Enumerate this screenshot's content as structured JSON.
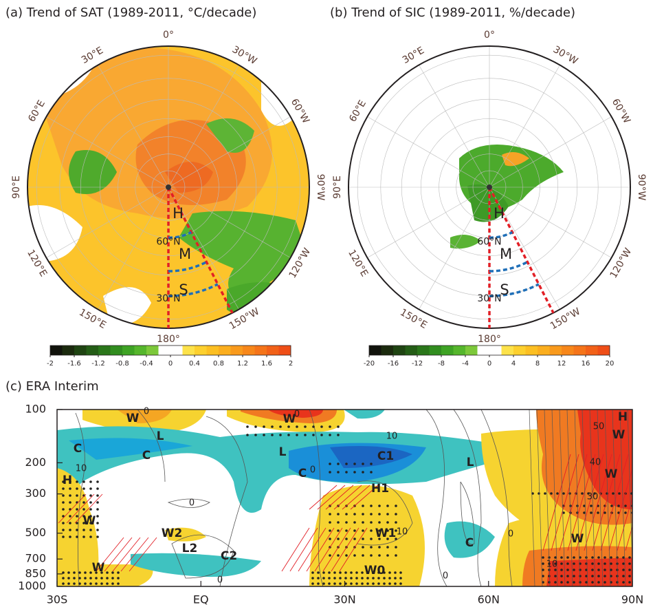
{
  "panels": [
    {
      "title": "(a) Trend of SAT (1989-2011, °C/decade)",
      "lon_labels": [
        "0°",
        "30°W",
        "60°W",
        "90°W",
        "120°W",
        "150°W",
        "180°",
        "150°E",
        "120°E",
        "90°E",
        "60°E",
        "30°E"
      ],
      "lat_labels": [
        "60°N",
        "30°N"
      ],
      "regions": [
        "H",
        "M",
        "S"
      ],
      "colorbar": {
        "lim": [
          -2,
          2
        ],
        "ticks": [
          -2,
          -1.6,
          -1.2,
          -0.8,
          -0.4,
          0,
          0.4,
          0.8,
          1.2,
          1.6,
          2
        ],
        "colors": [
          "#11130c",
          "#1b2a0e",
          "#1f4412",
          "#245d16",
          "#2a761a",
          "#318d1f",
          "#3ea324",
          "#55b62c",
          "#7cc83a",
          "#ffffff",
          "#ffffff",
          "#fde24a",
          "#fdd02e",
          "#fcbf22",
          "#fbae1e",
          "#f99a1c",
          "#f7871a",
          "#f57419",
          "#f26118",
          "#ef4e17"
        ]
      }
    },
    {
      "title": "(b) Trend of SIC (1989-2011, %/decade)",
      "lon_labels": [
        "0°",
        "30°W",
        "60°W",
        "90°W",
        "120°W",
        "150°W",
        "180°",
        "150°E",
        "120°E",
        "90°E",
        "60°E",
        "30°E"
      ],
      "lat_labels": [
        "60°N",
        "30°N"
      ],
      "regions": [
        "H",
        "M",
        "S"
      ],
      "colorbar": {
        "lim": [
          -20,
          20
        ],
        "ticks": [
          -20,
          -16,
          -12,
          -8,
          -4,
          0,
          4,
          8,
          12,
          16,
          20
        ],
        "colors": [
          "#11130c",
          "#1b2a0e",
          "#1f4412",
          "#245d16",
          "#2a761a",
          "#318d1f",
          "#3ea324",
          "#55b62c",
          "#7cc83a",
          "#ffffff",
          "#ffffff",
          "#fde24a",
          "#fdd02e",
          "#fcbf22",
          "#fbae1e",
          "#f99a1c",
          "#f7871a",
          "#f57419",
          "#f26118",
          "#ef4e17"
        ]
      }
    }
  ],
  "chart_c": {
    "type": "contour",
    "title": "(c) ERA Interim",
    "xlim": [
      -30,
      90
    ],
    "xticks": [
      {
        "value": -30,
        "label": "30S"
      },
      {
        "value": 0,
        "label": "EQ"
      },
      {
        "value": 30,
        "label": "30N"
      },
      {
        "value": 60,
        "label": "60N"
      },
      {
        "value": 90,
        "label": "90N"
      }
    ],
    "ylim": [
      1000,
      100
    ],
    "log_y": true,
    "yticks": [
      100,
      200,
      300,
      500,
      700,
      850,
      1000
    ],
    "labels": [
      "W",
      "L",
      "C",
      "C",
      "H",
      "W",
      "W",
      "W2",
      "L2",
      "C2",
      "W",
      "L",
      "C",
      "C1",
      "H1",
      "W1",
      "W0",
      "L",
      "C",
      "H",
      "W",
      "W",
      "W"
    ],
    "contour_labels": [
      0,
      0,
      10,
      10,
      0,
      0,
      10,
      0,
      0,
      0,
      50,
      40,
      30,
      10
    ]
  }
}
